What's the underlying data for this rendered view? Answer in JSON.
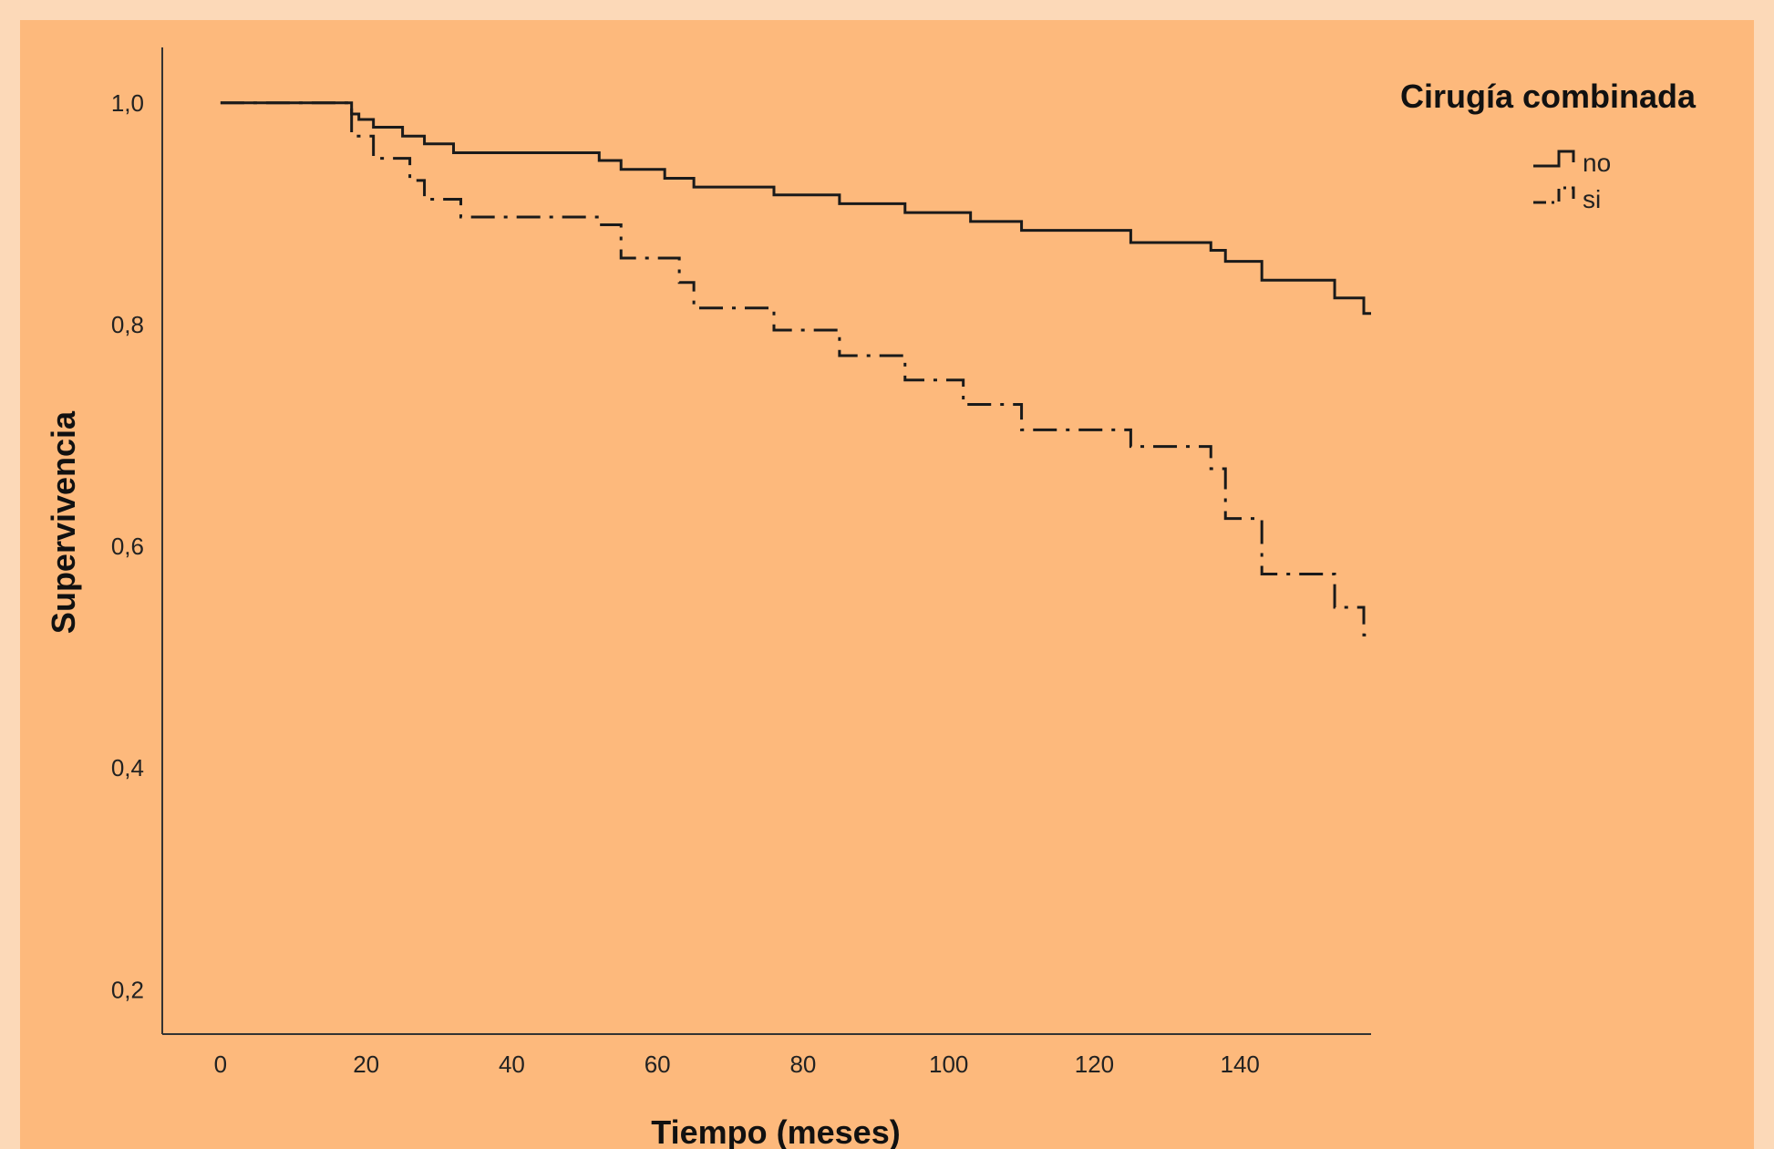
{
  "chart_data": {
    "type": "line",
    "subtype": "step",
    "xlabel": "Tiempo (meses)",
    "ylabel": "Supervivencia",
    "xlim": [
      -8,
      158
    ],
    "ylim": [
      0.16,
      1.05
    ],
    "xticks": [
      0,
      20,
      40,
      60,
      80,
      100,
      120,
      140
    ],
    "xtick_labels": [
      "0",
      "20",
      "40",
      "60",
      "80",
      "100",
      "120",
      "140"
    ],
    "yticks": [
      0.2,
      0.4,
      0.6,
      0.8,
      1.0
    ],
    "ytick_labels": [
      "0,2",
      "0,4",
      "0,6",
      "0,8",
      "1,0"
    ],
    "grid": false,
    "legend": {
      "title": "Cirugía combinada",
      "position": "top-right"
    },
    "series": [
      {
        "name": "no",
        "style": "solid",
        "color": "#1a1a1a",
        "points": [
          [
            0,
            1.0
          ],
          [
            17,
            1.0
          ],
          [
            18,
            0.99
          ],
          [
            19,
            0.985
          ],
          [
            21,
            0.978
          ],
          [
            25,
            0.97
          ],
          [
            28,
            0.963
          ],
          [
            32,
            0.955
          ],
          [
            52,
            0.948
          ],
          [
            55,
            0.94
          ],
          [
            61,
            0.932
          ],
          [
            65,
            0.924
          ],
          [
            76,
            0.917
          ],
          [
            85,
            0.909
          ],
          [
            94,
            0.901
          ],
          [
            103,
            0.893
          ],
          [
            110,
            0.885
          ],
          [
            125,
            0.874
          ],
          [
            136,
            0.867
          ],
          [
            138,
            0.857
          ],
          [
            143,
            0.84
          ],
          [
            153,
            0.824
          ],
          [
            157,
            0.81
          ],
          [
            158,
            0.81
          ]
        ]
      },
      {
        "name": "si",
        "style": "dashdot",
        "color": "#1a1a1a",
        "points": [
          [
            0,
            1.0
          ],
          [
            17,
            1.0
          ],
          [
            18,
            0.97
          ],
          [
            21,
            0.95
          ],
          [
            26,
            0.93
          ],
          [
            28,
            0.913
          ],
          [
            33,
            0.897
          ],
          [
            52,
            0.89
          ],
          [
            55,
            0.86
          ],
          [
            63,
            0.838
          ],
          [
            65,
            0.815
          ],
          [
            76,
            0.795
          ],
          [
            85,
            0.772
          ],
          [
            94,
            0.75
          ],
          [
            102,
            0.728
          ],
          [
            110,
            0.705
          ],
          [
            125,
            0.69
          ],
          [
            136,
            0.67
          ],
          [
            138,
            0.625
          ],
          [
            143,
            0.575
          ],
          [
            153,
            0.545
          ],
          [
            157,
            0.52
          ],
          [
            158,
            0.52
          ]
        ]
      }
    ]
  }
}
